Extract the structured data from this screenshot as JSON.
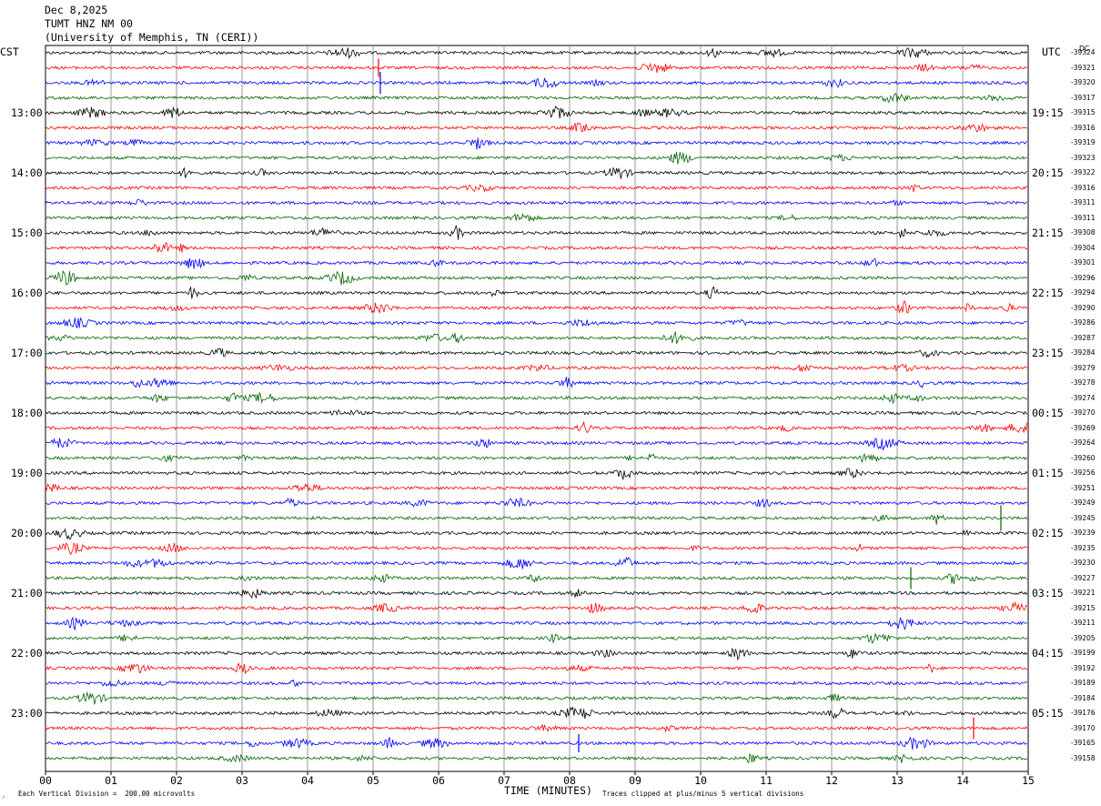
{
  "header": {
    "date": "Dec 8,2025",
    "station": "TUMT HNZ NM 00",
    "institution": "(University of Memphis, TN (CERI))"
  },
  "left_axis_title": "CST",
  "right_axis_title": "UTC",
  "dc_title": "DC",
  "left_hours": [
    "13:00",
    "14:00",
    "15:00",
    "16:00",
    "17:00",
    "18:00",
    "19:00",
    "20:00",
    "21:00",
    "22:00",
    "23:00"
  ],
  "right_hours": [
    "19:15",
    "20:15",
    "21:15",
    "22:15",
    "23:15",
    "00:15",
    "01:15",
    "02:15",
    "03:15",
    "04:15",
    "05:15"
  ],
  "dc_offsets": [
    "-39324",
    "-39321",
    "-39320",
    "-39317",
    "-39315",
    "-39316",
    "-39319",
    "-39323",
    "-39322",
    "-39316",
    "-39311",
    "-39311",
    "-39308",
    "-39304",
    "-39301",
    "-39296",
    "-39294",
    "-39290",
    "-39286",
    "-39287",
    "-39284",
    "-39279",
    "-39278",
    "-39274",
    "-39270",
    "-39269",
    "-39264",
    "-39260",
    "-39256",
    "-39251",
    "-39249",
    "-39245",
    "-39239",
    "-39235",
    "-39230",
    "-39227",
    "-39221",
    "-39215",
    "-39211",
    "-39205",
    "-39199",
    "-39192",
    "-39189",
    "-39184",
    "-39176",
    "-39170",
    "-39165",
    "-39158"
  ],
  "x_ticks": [
    "00",
    "01",
    "02",
    "03",
    "04",
    "05",
    "06",
    "07",
    "08",
    "09",
    "10",
    "11",
    "12",
    "13",
    "14",
    "15"
  ],
  "x_label": "TIME (MINUTES)",
  "footer_left": "Each Vertical Division =  200.00 microvolts",
  "footer_right": "Traces clipped at plus/minus 5 vertical divisions",
  "trace_colors": [
    "#000000",
    "#ff0000",
    "#0000ff",
    "#006400"
  ],
  "grid_color": "#808080"
}
